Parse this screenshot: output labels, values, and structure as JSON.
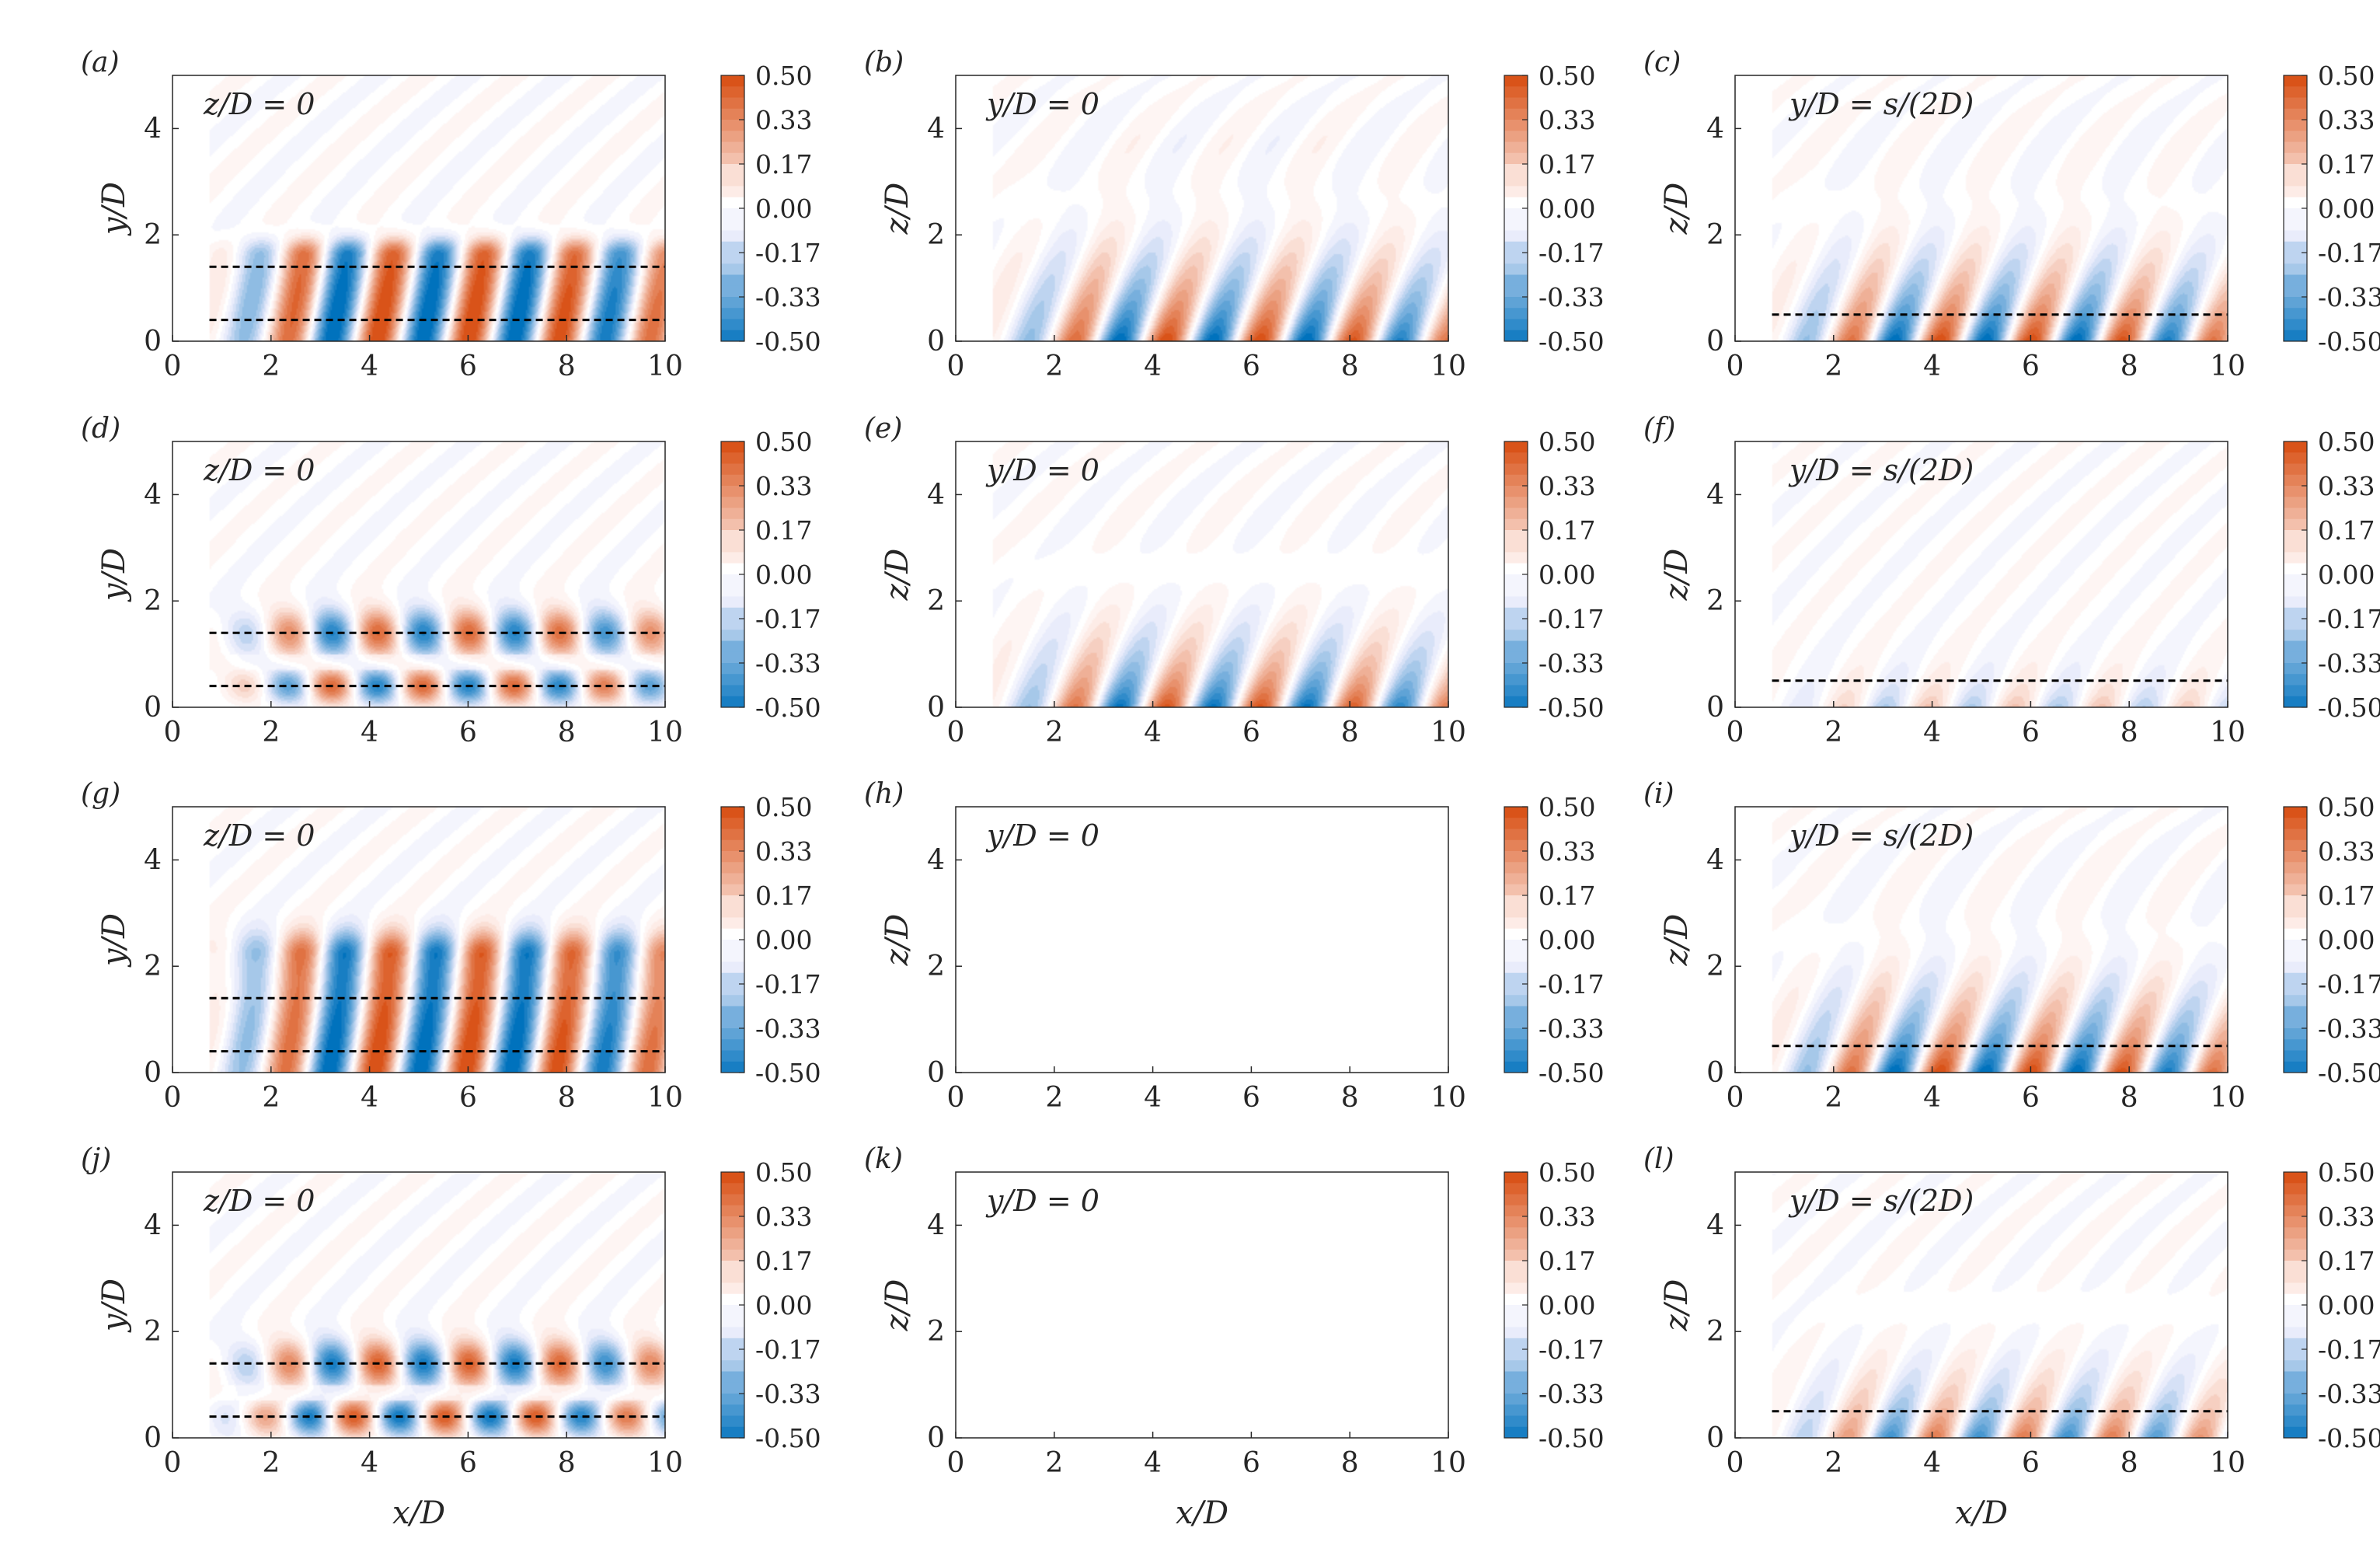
{
  "chart_data": [
    {
      "type": "heatmap",
      "panel_label": "(a)",
      "annotation": "z/D = 0",
      "xlabel": "",
      "ylabel": "y/D",
      "xlim": [
        0,
        10
      ],
      "ylim": [
        0,
        5
      ],
      "x_ticks": [
        "0",
        "2",
        "4",
        "6",
        "8",
        "10"
      ],
      "y_ticks": [
        "0",
        "2",
        "4"
      ],
      "colorbar": {
        "range": [
          -0.5,
          0.5
        ],
        "ticks": [
          "0.50",
          "0.33",
          "0.17",
          "0.00",
          "-0.17",
          "-0.33",
          "-0.50"
        ]
      },
      "reference_lines_y": [
        1.4,
        0.4
      ],
      "wave": {
        "x_start": 0.75,
        "wavelength": 1.85,
        "base_amplitude": 0.6,
        "near_wall_amplitude": 1.0,
        "pattern": "antisymmetric-band",
        "band_top": 1.6
      }
    },
    {
      "type": "heatmap",
      "panel_label": "(b)",
      "annotation": "y/D = 0",
      "xlabel": "",
      "ylabel": "z/D",
      "xlim": [
        0,
        10
      ],
      "ylim": [
        0,
        5
      ],
      "x_ticks": [
        "0",
        "2",
        "4",
        "6",
        "8",
        "10"
      ],
      "y_ticks": [
        "0",
        "2",
        "4"
      ],
      "colorbar": {
        "range": [
          -0.5,
          0.5
        ],
        "ticks": [
          "0.50",
          "0.33",
          "0.17",
          "0.00",
          "-0.17",
          "-0.33",
          "-0.50"
        ]
      },
      "reference_lines_y": [],
      "wave": {
        "x_start": 0.75,
        "wavelength": 1.9,
        "base_amplitude": 0.6,
        "near_wall_amplitude": 1.0,
        "pattern": "wall-decay",
        "band_top": 2.4
      }
    },
    {
      "type": "heatmap",
      "panel_label": "(c)",
      "annotation": "y/D = s/(2D)",
      "xlabel": "",
      "ylabel": "z/D",
      "xlim": [
        0,
        10
      ],
      "ylim": [
        0,
        5
      ],
      "x_ticks": [
        "0",
        "2",
        "4",
        "6",
        "8",
        "10"
      ],
      "y_ticks": [
        "0",
        "2",
        "4"
      ],
      "colorbar": {
        "range": [
          -0.5,
          0.5
        ],
        "ticks": [
          "0.50",
          "0.33",
          "0.17",
          "0.00",
          "-0.17",
          "-0.33",
          "-0.50"
        ]
      },
      "reference_lines_y": [
        0.5
      ],
      "wave": {
        "x_start": 0.75,
        "wavelength": 1.85,
        "base_amplitude": 0.55,
        "near_wall_amplitude": 1.0,
        "pattern": "wall-decay",
        "band_top": 2.2
      }
    },
    {
      "type": "heatmap",
      "panel_label": "(d)",
      "annotation": "z/D = 0",
      "xlabel": "",
      "ylabel": "y/D",
      "xlim": [
        0,
        10
      ],
      "ylim": [
        0,
        5
      ],
      "x_ticks": [
        "0",
        "2",
        "4",
        "6",
        "8",
        "10"
      ],
      "y_ticks": [
        "0",
        "2",
        "4"
      ],
      "colorbar": {
        "range": [
          -0.5,
          0.5
        ],
        "ticks": [
          "0.50",
          "0.33",
          "0.17",
          "0.00",
          "-0.17",
          "-0.33",
          "-0.50"
        ]
      },
      "reference_lines_y": [
        1.4,
        0.4
      ],
      "wave": {
        "x_start": 0.75,
        "wavelength": 1.85,
        "base_amplitude": 0.55,
        "near_wall_amplitude": 0.95,
        "pattern": "two-row",
        "band_top": 1.8
      }
    },
    {
      "type": "heatmap",
      "panel_label": "(e)",
      "annotation": "y/D = 0",
      "xlabel": "",
      "ylabel": "z/D",
      "xlim": [
        0,
        10
      ],
      "ylim": [
        0,
        5
      ],
      "x_ticks": [
        "0",
        "2",
        "4",
        "6",
        "8",
        "10"
      ],
      "y_ticks": [
        "0",
        "2",
        "4"
      ],
      "colorbar": {
        "range": [
          -0.5,
          0.5
        ],
        "ticks": [
          "0.50",
          "0.33",
          "0.17",
          "0.00",
          "-0.17",
          "-0.33",
          "-0.50"
        ]
      },
      "reference_lines_y": [],
      "wave": {
        "x_start": 0.75,
        "wavelength": 1.9,
        "base_amplitude": 0.55,
        "near_wall_amplitude": 0.95,
        "pattern": "wall-decay",
        "band_top": 1.8
      }
    },
    {
      "type": "heatmap",
      "panel_label": "(f)",
      "annotation": "y/D = s/(2D)",
      "xlabel": "",
      "ylabel": "z/D",
      "xlim": [
        0,
        10
      ],
      "ylim": [
        0,
        5
      ],
      "x_ticks": [
        "0",
        "2",
        "4",
        "6",
        "8",
        "10"
      ],
      "y_ticks": [
        "0",
        "2",
        "4"
      ],
      "colorbar": {
        "range": [
          -0.5,
          0.5
        ],
        "ticks": [
          "0.50",
          "0.33",
          "0.17",
          "0.00",
          "-0.17",
          "-0.33",
          "-0.50"
        ]
      },
      "reference_lines_y": [
        0.5
      ],
      "wave": {
        "x_start": 0.75,
        "wavelength": 1.75,
        "base_amplitude": 0.55,
        "near_wall_amplitude": 0.35,
        "pattern": "wall-decay",
        "band_top": 0.9
      }
    },
    {
      "type": "heatmap",
      "panel_label": "(g)",
      "annotation": "z/D = 0",
      "xlabel": "",
      "ylabel": "y/D",
      "xlim": [
        0,
        10
      ],
      "ylim": [
        0,
        5
      ],
      "x_ticks": [
        "0",
        "2",
        "4",
        "6",
        "8",
        "10"
      ],
      "y_ticks": [
        "0",
        "2",
        "4"
      ],
      "colorbar": {
        "range": [
          -0.5,
          0.5
        ],
        "ticks": [
          "0.50",
          "0.33",
          "0.17",
          "0.00",
          "-0.17",
          "-0.33",
          "-0.50"
        ]
      },
      "reference_lines_y": [
        1.4,
        0.4
      ],
      "wave": {
        "x_start": 0.75,
        "wavelength": 1.85,
        "base_amplitude": 0.6,
        "near_wall_amplitude": 1.0,
        "pattern": "tall-band",
        "band_top": 2.2
      }
    },
    {
      "type": "heatmap",
      "panel_label": "(h)",
      "annotation": "y/D = 0",
      "xlabel": "",
      "ylabel": "z/D",
      "xlim": [
        0,
        10
      ],
      "ylim": [
        0,
        5
      ],
      "x_ticks": [
        "0",
        "2",
        "4",
        "6",
        "8",
        "10"
      ],
      "y_ticks": [
        "0",
        "2",
        "4"
      ],
      "colorbar": {
        "range": [
          -0.5,
          0.5
        ],
        "ticks": [
          "0.50",
          "0.33",
          "0.17",
          "0.00",
          "-0.17",
          "-0.33",
          "-0.50"
        ]
      },
      "reference_lines_y": [],
      "uniform_value": 0.02
    },
    {
      "type": "heatmap",
      "panel_label": "(i)",
      "annotation": "y/D = s/(2D)",
      "xlabel": "",
      "ylabel": "z/D",
      "xlim": [
        0,
        10
      ],
      "ylim": [
        0,
        5
      ],
      "x_ticks": [
        "0",
        "2",
        "4",
        "6",
        "8",
        "10"
      ],
      "y_ticks": [
        "0",
        "2",
        "4"
      ],
      "colorbar": {
        "range": [
          -0.5,
          0.5
        ],
        "ticks": [
          "0.50",
          "0.33",
          "0.17",
          "0.00",
          "-0.17",
          "-0.33",
          "-0.50"
        ]
      },
      "reference_lines_y": [
        0.5
      ],
      "wave": {
        "x_start": 0.75,
        "wavelength": 1.85,
        "base_amplitude": 0.6,
        "near_wall_amplitude": 1.0,
        "pattern": "wall-decay",
        "band_top": 2.3
      }
    },
    {
      "type": "heatmap",
      "panel_label": "(j)",
      "annotation": "z/D = 0",
      "xlabel": "x/D",
      "ylabel": "y/D",
      "xlim": [
        0,
        10
      ],
      "ylim": [
        0,
        5
      ],
      "x_ticks": [
        "0",
        "2",
        "4",
        "6",
        "8",
        "10"
      ],
      "y_ticks": [
        "0",
        "2",
        "4"
      ],
      "colorbar": {
        "range": [
          -0.5,
          0.5
        ],
        "ticks": [
          "0.50",
          "0.33",
          "0.17",
          "0.00",
          "-0.17",
          "-0.33",
          "-0.50"
        ]
      },
      "reference_lines_y": [
        1.4,
        0.4
      ],
      "wave": {
        "x_start": 0.75,
        "wavelength": 1.85,
        "base_amplitude": 0.6,
        "near_wall_amplitude": 1.0,
        "pattern": "two-row-shifted",
        "band_top": 2.0
      }
    },
    {
      "type": "heatmap",
      "panel_label": "(k)",
      "annotation": "y/D = 0",
      "xlabel": "x/D",
      "ylabel": "z/D",
      "xlim": [
        0,
        10
      ],
      "ylim": [
        0,
        5
      ],
      "x_ticks": [
        "0",
        "2",
        "4",
        "6",
        "8",
        "10"
      ],
      "y_ticks": [
        "0",
        "2",
        "4"
      ],
      "colorbar": {
        "range": [
          -0.5,
          0.5
        ],
        "ticks": [
          "0.50",
          "0.33",
          "0.17",
          "0.00",
          "-0.17",
          "-0.33",
          "-0.50"
        ]
      },
      "reference_lines_y": [],
      "uniform_value": 0.02
    },
    {
      "type": "heatmap",
      "panel_label": "(l)",
      "annotation": "y/D = s/(2D)",
      "xlabel": "x/D",
      "ylabel": "z/D",
      "xlim": [
        0,
        10
      ],
      "ylim": [
        0,
        5
      ],
      "x_ticks": [
        "0",
        "2",
        "4",
        "6",
        "8",
        "10"
      ],
      "y_ticks": [
        "0",
        "2",
        "4"
      ],
      "colorbar": {
        "range": [
          -0.5,
          0.5
        ],
        "ticks": [
          "0.50",
          "0.33",
          "0.17",
          "0.00",
          "-0.17",
          "-0.33",
          "-0.50"
        ]
      },
      "reference_lines_y": [
        0.5
      ],
      "wave": {
        "x_start": 0.75,
        "wavelength": 1.8,
        "base_amplitude": 0.55,
        "near_wall_amplitude": 0.75,
        "pattern": "wall-decay",
        "band_top": 1.6
      }
    }
  ],
  "colors": {
    "positive": "#d95319",
    "negative": "#0072bd",
    "neutral": "#ffffff"
  }
}
